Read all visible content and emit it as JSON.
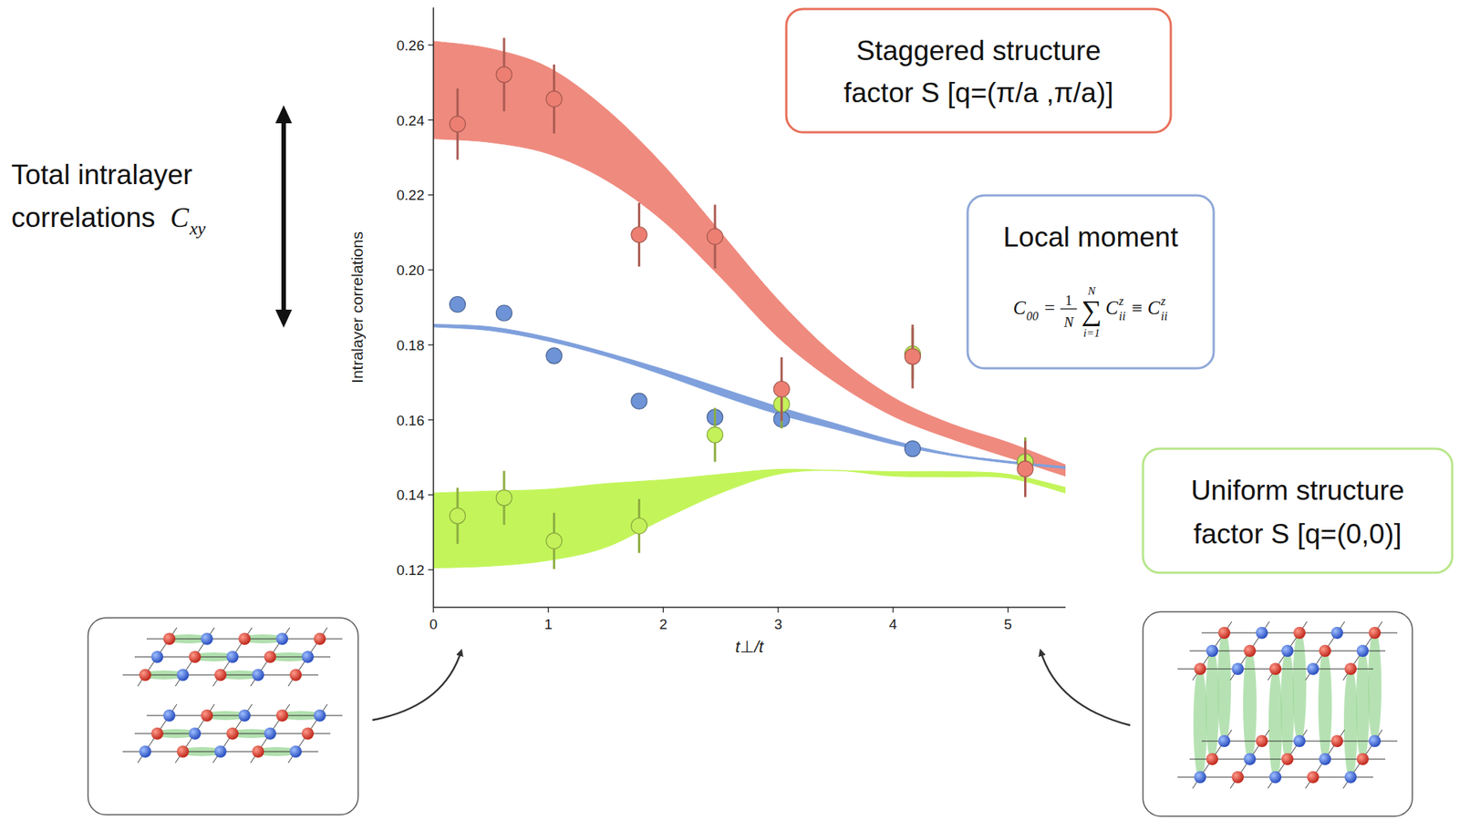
{
  "chart_data": {
    "type": "scatter",
    "x_label": "t⊥/t",
    "y_label": "Intralayer correlations",
    "xlim": [
      0,
      5.5
    ],
    "ylim": [
      0.11,
      0.27
    ],
    "xticks": [
      0,
      1,
      2,
      3,
      4,
      5
    ],
    "yticks": [
      0.12,
      0.14,
      0.16,
      0.18,
      {
        "value": 0.2,
        "label": "0.20"
      },
      0.22,
      0.24,
      0.26
    ],
    "bands": [
      {
        "color": "#ef8a7e",
        "x": [
          0,
          0.5,
          1,
          1.5,
          2,
          2.5,
          3,
          3.5,
          4,
          4.5,
          5,
          5.5
        ],
        "lower": [
          0.235,
          0.234,
          0.231,
          0.224,
          0.213,
          0.198,
          0.182,
          0.17,
          0.161,
          0.155,
          0.15,
          0.145
        ],
        "upper": [
          0.261,
          0.259,
          0.254,
          0.243,
          0.228,
          0.21,
          0.192,
          0.177,
          0.166,
          0.159,
          0.154,
          0.148
        ]
      },
      {
        "color": "#c3f55a",
        "x": [
          0,
          0.5,
          1,
          1.5,
          2,
          2.5,
          3,
          3.5,
          4,
          4.5,
          5,
          5.5
        ],
        "lower": [
          0.1205,
          0.121,
          0.1225,
          0.126,
          0.1335,
          0.1405,
          0.1455,
          0.1465,
          0.145,
          0.1448,
          0.1445,
          0.1405
        ],
        "upper": [
          0.1405,
          0.141,
          0.1415,
          0.143,
          0.144,
          0.1455,
          0.1468,
          0.1465,
          0.1462,
          0.1462,
          0.1455,
          0.142
        ]
      },
      {
        "color": "#7fa0dc",
        "x": [
          0,
          0.5,
          1,
          1.5,
          2,
          2.5,
          3,
          3.5,
          4,
          4.5,
          5,
          5.5
        ],
        "lower": [
          0.1848,
          0.1838,
          0.181,
          0.177,
          0.172,
          0.1665,
          0.1615,
          0.1575,
          0.1535,
          0.1505,
          0.1485,
          0.147
        ],
        "upper": [
          0.1855,
          0.1848,
          0.182,
          0.178,
          0.1735,
          0.1685,
          0.1635,
          0.159,
          0.1545,
          0.151,
          0.149,
          0.1475
        ]
      }
    ],
    "series": [
      {
        "color": "#6e93d6",
        "marker": "circle",
        "x": [
          0.21,
          0.615,
          1.05,
          1.79,
          2.45,
          3.03,
          4.17,
          5.15
        ],
        "values": [
          0.1908,
          0.1885,
          0.1771,
          0.165,
          0.1607,
          0.1602,
          0.1523,
          0.1488
        ]
      },
      {
        "color": "#c4f05a",
        "marker": "circle",
        "x": [
          0.21,
          0.615,
          1.05,
          1.79,
          2.45,
          3.03,
          4.17,
          5.15
        ],
        "values": [
          0.1344,
          0.1392,
          0.1277,
          0.1317,
          0.156,
          0.1642,
          0.1776,
          0.1488
        ],
        "errors": [
          0.0075,
          0.0072,
          0.0075,
          0.0072,
          0.0072,
          0.0065,
          0.007,
          0.0065
        ]
      },
      {
        "color": "#ec7f72",
        "marker": "circle",
        "x": [
          0.21,
          0.615,
          1.05,
          1.79,
          2.45,
          3.03,
          4.17,
          5.15
        ],
        "values": [
          0.2389,
          0.2521,
          0.2456,
          0.2094,
          0.2089,
          0.1682,
          0.1769,
          0.1469
        ],
        "errors": [
          0.0095,
          0.0098,
          0.0092,
          0.0085,
          0.0085,
          0.0085,
          0.0085,
          0.0075
        ]
      }
    ],
    "annotations": {
      "staggered": {
        "lines": [
          "Staggered structure",
          "factor S [q=(π/a ,π/a)]"
        ]
      },
      "uniform": {
        "lines": [
          "Uniform structure",
          "factor S [q=(0,0)]"
        ]
      },
      "local_moment": {
        "title": "Local moment",
        "formula": {
          "lhs": "C",
          "lhs_sub": "00",
          "eq": "=",
          "frac_num": "1",
          "frac_den": "N",
          "sum": "∑",
          "sum_top": "N",
          "sum_bottom": "i=1",
          "term": "C",
          "term_sup": "z",
          "term_sub": "ii",
          "equiv": "≡",
          "rhs": "C",
          "rhs_sup": "z",
          "rhs_sub": "ii"
        }
      },
      "total": {
        "lines": [
          "Total intralayer",
          "correlations"
        ],
        "symbol": "C",
        "symbol_sub": "xy"
      }
    }
  }
}
